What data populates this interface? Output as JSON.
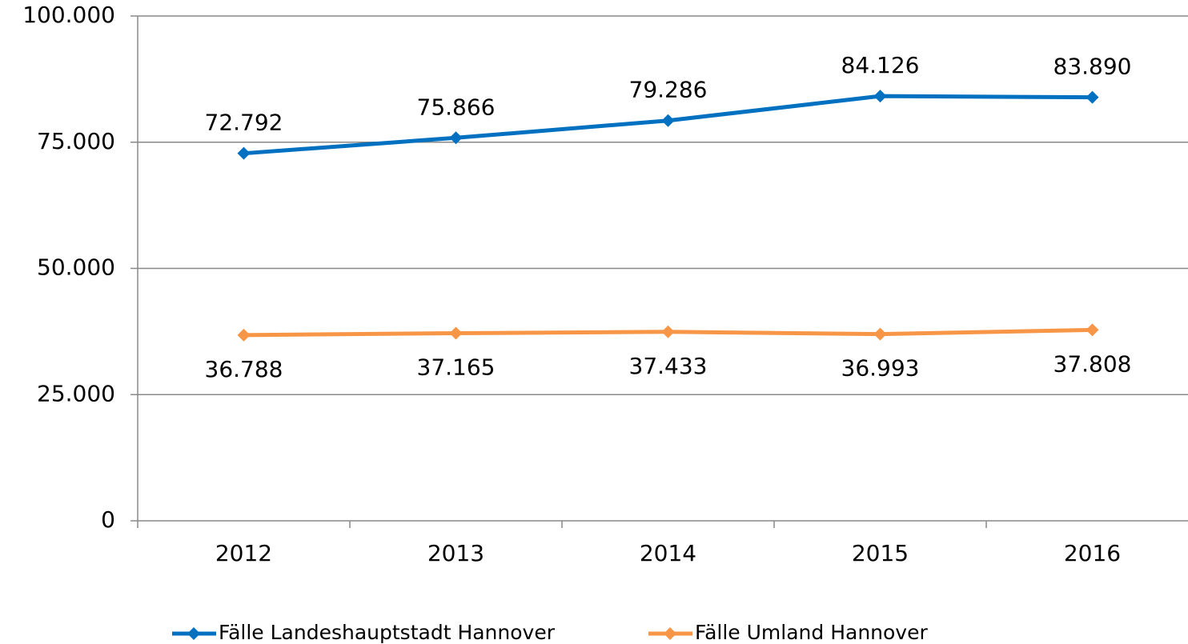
{
  "chart_data": {
    "type": "line",
    "categories": [
      "2012",
      "2013",
      "2014",
      "2015",
      "2016"
    ],
    "series": [
      {
        "name": "Fälle Landeshauptstadt Hannover",
        "color": "#0070c0",
        "values": [
          72792,
          75866,
          79286,
          84126,
          83890
        ],
        "value_labels": [
          "72.792",
          "75.866",
          "79.286",
          "84.126",
          "83.890"
        ]
      },
      {
        "name": "Fälle Umland Hannover",
        "color": "#f79646",
        "values": [
          36788,
          37165,
          37433,
          36993,
          37808
        ],
        "value_labels": [
          "36.788",
          "37.165",
          "37.433",
          "36.993",
          "37.808"
        ]
      }
    ],
    "ylim": [
      0,
      100000
    ],
    "yticks": [
      0,
      {
        "value": 25000,
        "label": "25.000"
      },
      {
        "value": 50000,
        "label": "50.000"
      },
      {
        "value": 75000,
        "label": "75.000"
      },
      {
        "value": 100000,
        "label": "100.000"
      }
    ],
    "grid": true,
    "legend": "bottom"
  }
}
